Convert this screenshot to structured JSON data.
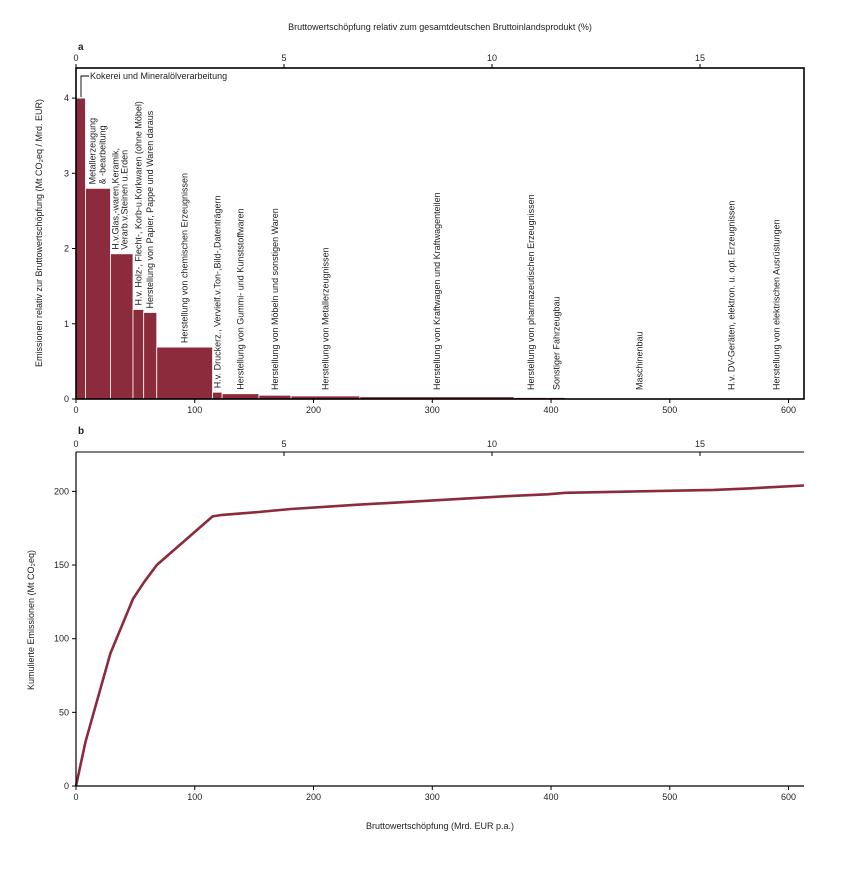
{
  "colors": {
    "bar": "#8b2b3b",
    "bar_stroke": "#ffffff",
    "curve": "#8b2b3b",
    "axis": "#000000"
  },
  "top_axis_title": "Bruttowertschöpfung relativ zum gesamtdeutschen Bruttoinlandsprodukt (%)",
  "chart_data": [
    {
      "type": "bar",
      "panel_label": "a",
      "ylabel": "Emissionen relativ zur Bruttowertschöpfung (Mt CO₂eq / Mrd. EUR)",
      "xlim": [
        0,
        613
      ],
      "ylim": [
        0,
        4.4
      ],
      "xticks": [
        0,
        100,
        200,
        300,
        400,
        500,
        600
      ],
      "yticks": [
        0,
        1,
        2,
        3,
        4
      ],
      "top_xlim": [
        0,
        17.5
      ],
      "top_xticks": [
        0,
        5,
        10,
        15
      ],
      "bars": [
        {
          "label": "Kokerei und Mineralölverarbeitung",
          "x0": 0,
          "x1": 8,
          "value": 4.0
        },
        {
          "label": "Metallerzeugung & -bearbeitung",
          "x0": 8,
          "x1": 29,
          "value": 2.8
        },
        {
          "label": "H.v.Glas,-waren,Keramik, Verarb.v.Steinen u.Erden",
          "x0": 29,
          "x1": 48,
          "value": 1.93
        },
        {
          "label": "H.v. Holz-, Flecht-, Korb-u.Korkwaren (ohne Möbel)",
          "x0": 48,
          "x1": 57,
          "value": 1.19
        },
        {
          "label": "Herstellung von Papier, Pappe und Waren daraus",
          "x0": 57,
          "x1": 68,
          "value": 1.15
        },
        {
          "label": "Herstellung von chemischen Erzeugnissen",
          "x0": 68,
          "x1": 115,
          "value": 0.69
        },
        {
          "label": "H.v. Druckerz., Vervielf.v.Ton-,Bild-,Datenträgern",
          "x0": 115,
          "x1": 123,
          "value": 0.09
        },
        {
          "label": "Herstellung von Gummi- und Kunststoffwaren",
          "x0": 123,
          "x1": 154,
          "value": 0.07
        },
        {
          "label": "Herstellung von Möbeln und sonstigen Waren",
          "x0": 154,
          "x1": 181,
          "value": 0.05
        },
        {
          "label": "Herstellung von Metallerzeugnissen",
          "x0": 181,
          "x1": 239,
          "value": 0.04
        },
        {
          "label": "Herstellung von Kraftwagen und Kraftwagenteilen",
          "x0": 239,
          "x1": 369,
          "value": 0.03
        },
        {
          "label": "Herstellung von pharmazeutischen Erzeugnissen",
          "x0": 369,
          "x1": 397,
          "value": 0.02
        },
        {
          "label": "Sonstiger Fahrzeugbau",
          "x0": 397,
          "x1": 412,
          "value": 0.02
        },
        {
          "label": "Maschinenbau",
          "x0": 412,
          "x1": 537,
          "value": 0.012
        },
        {
          "label": "H.v. DV-Geräten, elektron. u. opt. Erzeugnissen",
          "x0": 537,
          "x1": 567,
          "value": 0.01
        },
        {
          "label": "Herstellung von elektrischen Ausrüstungen",
          "x0": 567,
          "x1": 613,
          "value": 0.01
        }
      ]
    },
    {
      "type": "line",
      "panel_label": "b",
      "xlabel": "Bruttowertschöpfung (Mrd. EUR p.a.)",
      "ylabel": "Kumulierte Emissionen (Mt CO₂eq)",
      "xlim": [
        0,
        613
      ],
      "ylim": [
        0,
        205
      ],
      "xticks": [
        0,
        100,
        200,
        300,
        400,
        500,
        600
      ],
      "yticks": [
        0,
        50,
        100,
        150,
        200
      ],
      "top_xlim": [
        0,
        17.5
      ],
      "top_xticks": [
        0,
        5,
        10,
        15
      ],
      "x": [
        0,
        8,
        29,
        48,
        57,
        68,
        115,
        123,
        154,
        181,
        239,
        369,
        397,
        412,
        537,
        567,
        613
      ],
      "y": [
        0,
        30,
        90,
        127,
        138,
        150,
        183,
        184,
        186,
        188,
        191,
        197,
        198,
        199,
        201,
        202,
        204
      ]
    }
  ]
}
